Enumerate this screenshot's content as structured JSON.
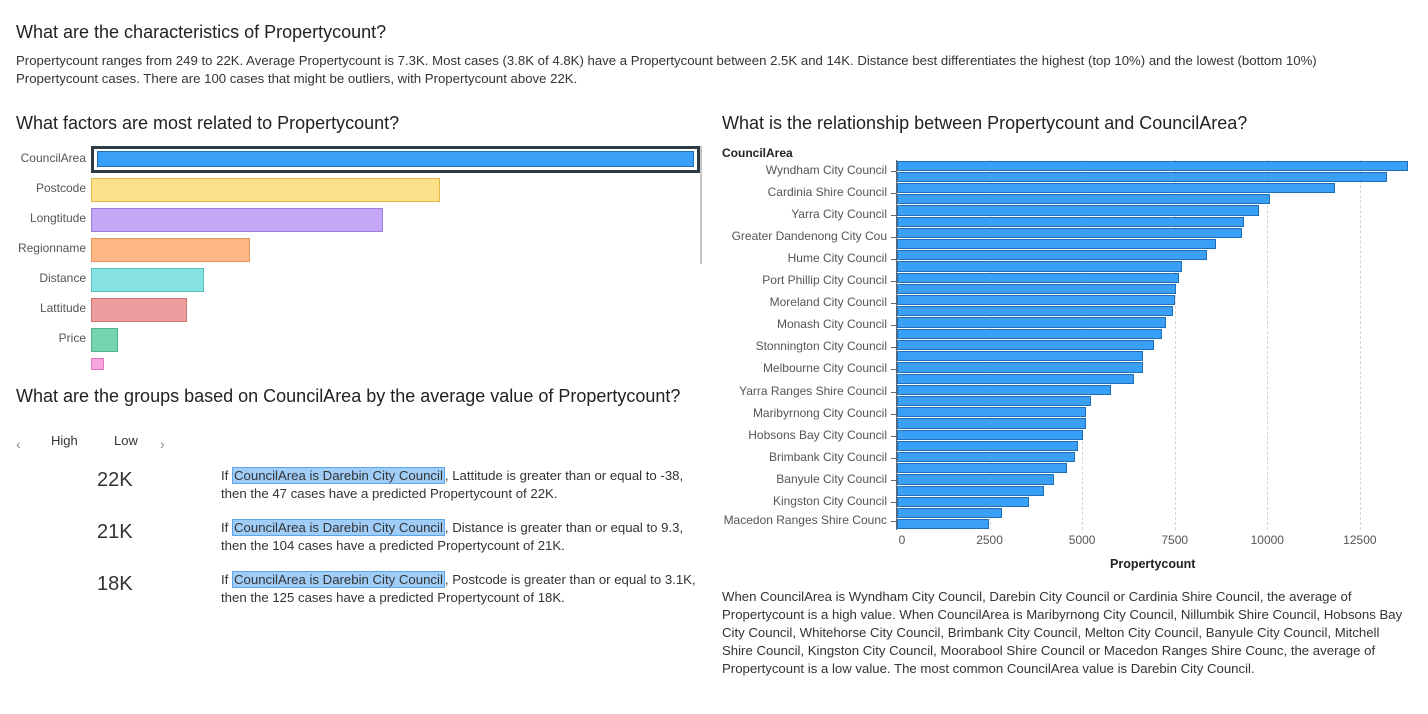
{
  "headings": {
    "main_question": "What are the characteristics of Propertycount?",
    "factors_question": "What factors are most related to Propertycount?",
    "relationship_question": "What is the relationship between Propertycount and CouncilArea?",
    "groups_question": "What are the groups based on CouncilArea by the average value of Propertycount?"
  },
  "summary": "Propertycount ranges from 249 to 22K. Average Propertycount is 7.3K. Most cases (3.8K of 4.8K) have a Propertycount between 2.5K and 14K. Distance best differentiates the highest (top 10%) and the lowest (bottom 10%) Propertycount cases. There are 100 cases that might be outliers, with Propertycount above 22K.",
  "groups": {
    "tab_high": "High",
    "tab_low": "Low",
    "prev_icon": "chevron-left-icon",
    "next_icon": "chevron-right-icon",
    "rules": [
      {
        "value": "22K",
        "highlight": "CouncilArea is Darebin City Council",
        "prefix": "If ",
        "text": ", Lattitude is greater than or equal to -38, then the 47 cases have a predicted Propertycount of 22K."
      },
      {
        "value": "21K",
        "highlight": "CouncilArea is Darebin City Council",
        "prefix": "If ",
        "text": ", Distance is greater than or equal to 9.3, then the 104 cases have a predicted Propertycount of 21K."
      },
      {
        "value": "18K",
        "highlight": "CouncilArea is Darebin City Council",
        "prefix": "If ",
        "text": ", Postcode is greater than or equal to 3.1K, then the 125 cases have a predicted Propertycount of 18K."
      }
    ]
  },
  "relationship_summary": "When CouncilArea is Wyndham City Council, Darebin City Council or Cardinia Shire Council, the average of Propertycount is a high value. When CouncilArea is Maribyrnong City Council, Nillumbik Shire Council, Hobsons Bay City Council, Whitehorse City Council, Brimbank City Council, Melton City Council, Banyule City Council, Mitchell Shire Council, Kingston City Council, Moorabool Shire Council or Macedon Ranges Shire Counc, the average of Propertycount is a low value. The most common CouncilArea value is Darebin City Council.",
  "chart_data": [
    {
      "type": "bar",
      "orientation": "horizontal",
      "title": "What factors are most related to Propertycount?",
      "categories": [
        "CouncilArea",
        "Postcode",
        "Longtitude",
        "Regionname",
        "Distance",
        "Lattitude",
        "Price",
        ""
      ],
      "values": [
        1.0,
        0.573,
        0.48,
        0.261,
        0.186,
        0.158,
        0.044,
        0.022
      ],
      "colors": [
        "#3aa0f5",
        "#fde08a",
        "#c4a7f7",
        "#fdb785",
        "#86e1e3",
        "#ec9e9e",
        "#74d4b0",
        "#f7a6de"
      ],
      "border_colors": [
        "#1f6fb8",
        "#e0b94a",
        "#9a7ee0",
        "#e8935c",
        "#56bfc1",
        "#cf7474",
        "#4fb38c",
        "#e07cc0"
      ],
      "selected": "CouncilArea",
      "xlim": [
        0,
        1
      ]
    },
    {
      "type": "bar",
      "orientation": "horizontal",
      "title": "What is the relationship between Propertycount and CouncilArea?",
      "ylabel": "CouncilArea",
      "xlabel": "Propertycount",
      "xlim": [
        0,
        13800
      ],
      "xticks": [
        0,
        2500,
        5000,
        7500,
        10000,
        12500
      ],
      "xtick_labels": [
        "0",
        "2500",
        "5000",
        "7500",
        "10000",
        "12500"
      ],
      "labeled_categories": [
        "Wyndham City Council",
        "Cardinia Shire Council",
        "Yarra City Council",
        "Greater Dandenong City Cou",
        "Hume City Council",
        "Port Phillip City Council",
        "Moreland City Council",
        "Monash City Council",
        "Stonnington City Council",
        "Melbourne City Council",
        "Yarra Ranges Shire Council",
        "Maribyrnong City Council",
        "Hobsons Bay City Council",
        "Brimbank City Council",
        "Banyule City Council",
        "Kingston City Council",
        "Macedon Ranges Shire Counc"
      ],
      "values": [
        13800,
        13220,
        11820,
        10080,
        9780,
        9360,
        9330,
        8620,
        8380,
        7710,
        7610,
        7530,
        7500,
        7460,
        7270,
        7150,
        6950,
        6650,
        6650,
        6400,
        5790,
        5240,
        5100,
        5100,
        5030,
        4880,
        4810,
        4590,
        4250,
        3960,
        3560,
        2830,
        2480
      ],
      "color": "#3aa0f5"
    }
  ]
}
